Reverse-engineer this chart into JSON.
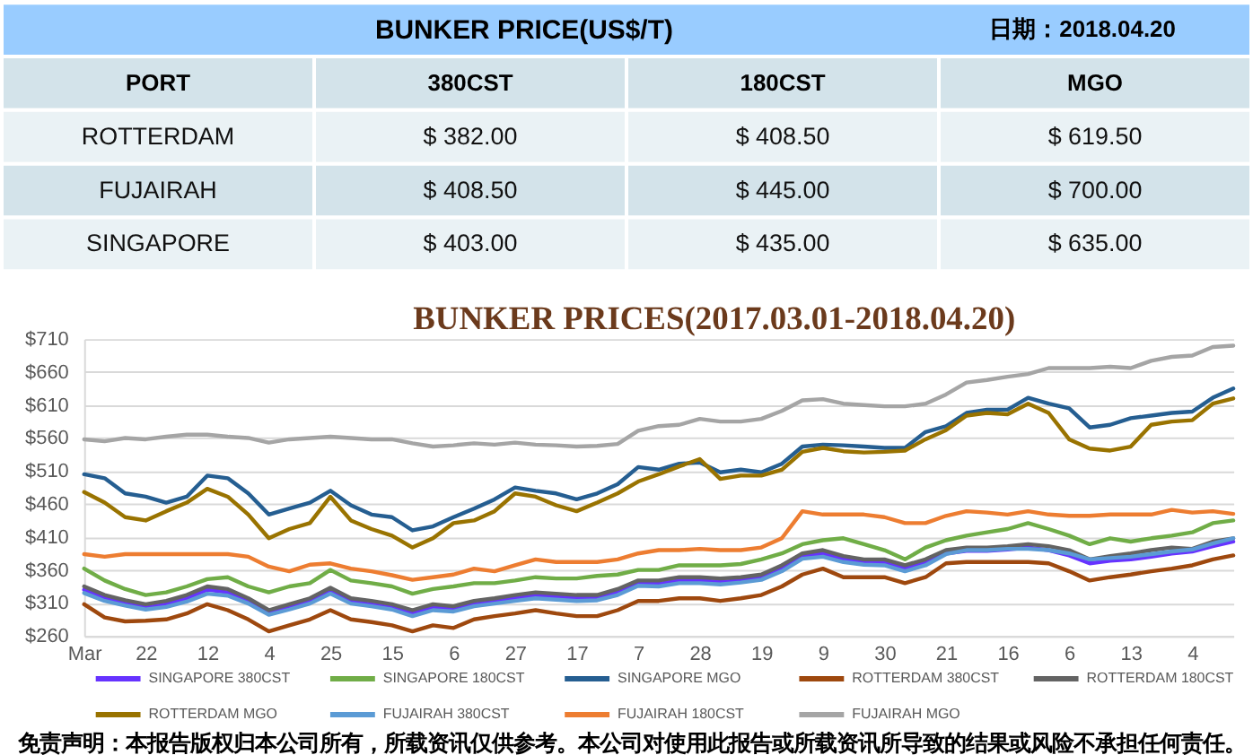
{
  "chart_data": [
    {
      "type": "other",
      "title": "BUNKER PRICE(US$/T)",
      "annotations": [
        "日期：2018.04.20"
      ],
      "ylabel": "PORT",
      "categories": [
        "ROTTERDAM",
        "FUJAIRAH",
        "SINGAPORE"
      ],
      "series": [
        {
          "name": "380CST",
          "colors": [
            "#eaf2f5",
            "#d3e3ea",
            "#eaf2f5"
          ],
          "values": [
            382,
            408.5,
            403
          ],
          "value_labels": [
            "$ 382.00",
            "$ 408.50",
            "$ 403.00"
          ]
        },
        {
          "name": "180CST",
          "colors": [
            "#eaf2f5",
            "#d3e3ea",
            "#eaf2f5"
          ],
          "values": [
            408.5,
            445,
            435
          ],
          "value_labels": [
            "$ 408.50",
            "$ 445.00",
            "$ 435.00"
          ]
        },
        {
          "name": "MGO",
          "colors": [
            "#eaf2f5",
            "#d3e3ea",
            "#eaf2f5"
          ],
          "values": [
            619.5,
            700,
            635
          ],
          "value_labels": [
            "$ 619.50",
            "$ 700.00",
            "$ 635.00"
          ]
        }
      ]
    },
    {
      "type": "line",
      "title": "BUNKER PRICES(2017.03.01-2018.04.20)",
      "categories": [
        "Mar",
        null,
        null,
        "22",
        null,
        null,
        "12",
        null,
        null,
        "4",
        null,
        null,
        "25",
        null,
        null,
        "15",
        null,
        null,
        "6",
        null,
        null,
        "27",
        null,
        null,
        "17",
        null,
        null,
        "7",
        null,
        null,
        "28",
        null,
        null,
        "19",
        null,
        null,
        "9",
        null,
        null,
        "30",
        null,
        null,
        "21",
        null,
        null,
        "16",
        null,
        null,
        "6",
        null,
        null,
        "13",
        null,
        null,
        "4",
        null,
        null
      ],
      "ylim": [
        260,
        710
      ],
      "yticks": [
        {
          "value": 260,
          "label": "$260"
        },
        {
          "value": 310,
          "label": "$310"
        },
        {
          "value": 360,
          "label": "$360"
        },
        {
          "value": 410,
          "label": "$410"
        },
        {
          "value": 460,
          "label": "$460"
        },
        {
          "value": 510,
          "label": "$510"
        },
        {
          "value": 560,
          "label": "$560"
        },
        {
          "value": 610,
          "label": "$610"
        },
        {
          "value": 660,
          "label": "$660"
        },
        {
          "value": 710,
          "label": "$710"
        }
      ],
      "grid": "y",
      "legend": "bottom",
      "series": [
        {
          "name": "SINGAPORE 380CST",
          "color": "#6633ff",
          "values": [
            330,
            317,
            309,
            303,
            308,
            317,
            330,
            326,
            312,
            294,
            303,
            312,
            328,
            312,
            308,
            303,
            294,
            303,
            300,
            308,
            312,
            317,
            321,
            319,
            317,
            317,
            326,
            339,
            339,
            344,
            344,
            342,
            344,
            348,
            362,
            380,
            385,
            376,
            371,
            371,
            362,
            371,
            385,
            389,
            389,
            391,
            394,
            390,
            382,
            370,
            374,
            376,
            380,
            385,
            388,
            396,
            403
          ]
        },
        {
          "name": "SINGAPORE 180CST",
          "color": "#70ad47",
          "values": [
            362,
            344,
            331,
            322,
            326,
            335,
            346,
            349,
            335,
            326,
            335,
            340,
            360,
            344,
            340,
            335,
            324,
            331,
            335,
            340,
            340,
            344,
            349,
            347,
            347,
            351,
            353,
            360,
            360,
            367,
            367,
            367,
            369,
            376,
            385,
            399,
            405,
            408,
            399,
            390,
            376,
            394,
            405,
            412,
            417,
            422,
            431,
            422,
            412,
            399,
            408,
            403,
            408,
            412,
            417,
            431,
            435
          ]
        },
        {
          "name": "SINGAPORE MGO",
          "color": "#255e91",
          "values": [
            505,
            499,
            476,
            471,
            462,
            471,
            503,
            499,
            476,
            444,
            453,
            462,
            480,
            458,
            444,
            440,
            420,
            426,
            440,
            453,
            467,
            485,
            480,
            476,
            467,
            476,
            490,
            516,
            512,
            521,
            523,
            508,
            512,
            508,
            521,
            547,
            550,
            549,
            547,
            545,
            545,
            569,
            578,
            598,
            603,
            603,
            621,
            612,
            605,
            576,
            580,
            590,
            594,
            598,
            600,
            621,
            635
          ]
        },
        {
          "name": "ROTTERDAM 380CST",
          "color": "#9e480e",
          "values": [
            308,
            288,
            282,
            283,
            285,
            294,
            308,
            299,
            285,
            267,
            276,
            285,
            299,
            285,
            281,
            276,
            267,
            276,
            272,
            285,
            290,
            294,
            299,
            294,
            290,
            290,
            299,
            313,
            313,
            317,
            317,
            313,
            317,
            322,
            335,
            353,
            362,
            349,
            349,
            349,
            340,
            349,
            370,
            372,
            372,
            372,
            372,
            370,
            358,
            344,
            349,
            353,
            358,
            362,
            367,
            376,
            382
          ]
        },
        {
          "name": "ROTTERDAM 180CST",
          "color": "#636363",
          "values": [
            335,
            322,
            314,
            308,
            313,
            322,
            335,
            331,
            317,
            299,
            308,
            317,
            333,
            317,
            313,
            308,
            299,
            308,
            305,
            313,
            317,
            322,
            326,
            324,
            322,
            322,
            331,
            344,
            344,
            349,
            349,
            347,
            349,
            353,
            367,
            385,
            390,
            381,
            376,
            376,
            367,
            376,
            390,
            394,
            394,
            396,
            399,
            396,
            390,
            376,
            381,
            385,
            390,
            394,
            392,
            403,
            408
          ]
        },
        {
          "name": "ROTTERDAM MGO",
          "color": "#997300",
          "values": [
            478,
            462,
            440,
            435,
            449,
            462,
            483,
            471,
            444,
            408,
            422,
            431,
            471,
            435,
            422,
            412,
            394,
            408,
            431,
            435,
            449,
            476,
            471,
            458,
            449,
            462,
            476,
            494,
            505,
            517,
            528,
            498,
            503,
            503,
            512,
            539,
            545,
            540,
            538,
            539,
            541,
            558,
            572,
            594,
            598,
            596,
            612,
            598,
            558,
            544,
            541,
            547,
            580,
            585,
            587,
            612,
            620
          ]
        },
        {
          "name": "FUJAIRAH 380CST",
          "color": "#5b9bd5",
          "values": [
            325,
            313,
            306,
            300,
            304,
            312,
            324,
            321,
            309,
            292,
            300,
            309,
            324,
            309,
            305,
            300,
            290,
            299,
            297,
            305,
            309,
            313,
            317,
            315,
            313,
            314,
            322,
            336,
            335,
            340,
            340,
            338,
            341,
            345,
            358,
            377,
            380,
            372,
            368,
            367,
            358,
            367,
            384,
            390,
            390,
            392,
            392,
            390,
            385,
            376,
            378,
            380,
            384,
            388,
            391,
            400,
            408
          ]
        },
        {
          "name": "FUJAIRAH 180CST",
          "color": "#ed7d31",
          "values": [
            384,
            380,
            384,
            384,
            384,
            384,
            384,
            384,
            380,
            365,
            358,
            368,
            370,
            362,
            358,
            352,
            345,
            349,
            353,
            362,
            358,
            367,
            376,
            372,
            372,
            372,
            376,
            385,
            390,
            390,
            392,
            390,
            390,
            394,
            408,
            449,
            444,
            444,
            444,
            440,
            431,
            431,
            442,
            449,
            447,
            444,
            449,
            444,
            442,
            442,
            444,
            444,
            444,
            451,
            447,
            449,
            445
          ]
        },
        {
          "name": "FUJAIRAH MGO",
          "color": "#a5a5a5",
          "values": [
            558,
            555,
            560,
            558,
            562,
            565,
            565,
            562,
            560,
            553,
            558,
            560,
            562,
            560,
            558,
            558,
            552,
            547,
            549,
            552,
            550,
            553,
            550,
            549,
            547,
            548,
            551,
            571,
            578,
            580,
            589,
            585,
            585,
            589,
            601,
            617,
            619,
            612,
            610,
            608,
            608,
            612,
            626,
            644,
            648,
            653,
            657,
            666,
            666,
            666,
            668,
            666,
            677,
            683,
            685,
            698,
            700
          ]
        }
      ],
      "annotations": [
        "免责声明：本报告版权归本公司所有，所载资讯仅供参考。本公司对使用此报告或所载资讯所导致的结果或风险不承担任何责任。"
      ]
    }
  ]
}
